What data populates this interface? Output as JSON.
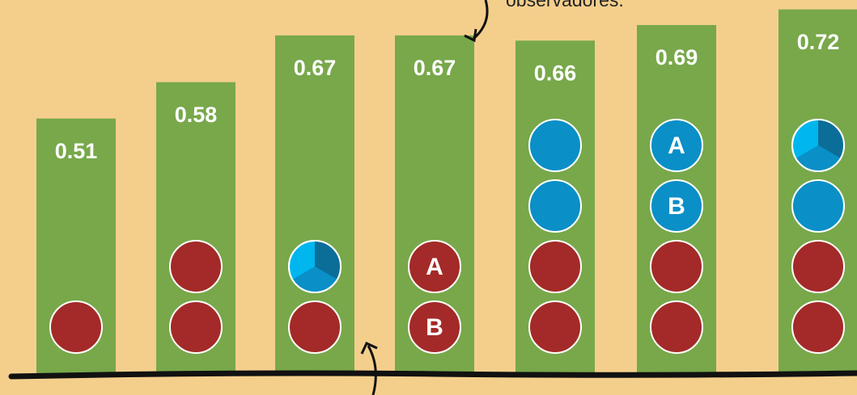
{
  "chart_data": {
    "type": "bar",
    "caption": "observadores.",
    "values": [
      0.51,
      0.58,
      0.67,
      0.67,
      0.66,
      0.69,
      0.72
    ],
    "color": "#78a84a",
    "background": "#f4cf8c",
    "tokens": [
      [
        {
          "color": "#a32a28"
        }
      ],
      [
        {
          "color": "#a32a28"
        },
        {
          "color": "#a32a28"
        }
      ],
      [
        {
          "color": "#a32a28"
        },
        {
          "colors": [
            "#0b6e98",
            "#0a8fc7",
            "#00b6ef"
          ]
        }
      ],
      [
        {
          "color": "#a32a28",
          "label": "B"
        },
        {
          "color": "#a32a28",
          "label": "A"
        }
      ],
      [
        {
          "color": "#a32a28"
        },
        {
          "color": "#a32a28"
        },
        {
          "color": "#0a8fc7"
        },
        {
          "color": "#0a8fc7"
        }
      ],
      [
        {
          "color": "#a32a28"
        },
        {
          "color": "#a32a28"
        },
        {
          "color": "#0a8fc7",
          "label": "B"
        },
        {
          "color": "#0a8fc7",
          "label": "A"
        }
      ],
      [
        {
          "color": "#a32a28"
        },
        {
          "color": "#a32a28"
        },
        {
          "color": "#0a8fc7"
        },
        {
          "colors": [
            "#0b6e98",
            "#0a8fc7",
            "#00b6ef"
          ]
        }
      ]
    ]
  }
}
